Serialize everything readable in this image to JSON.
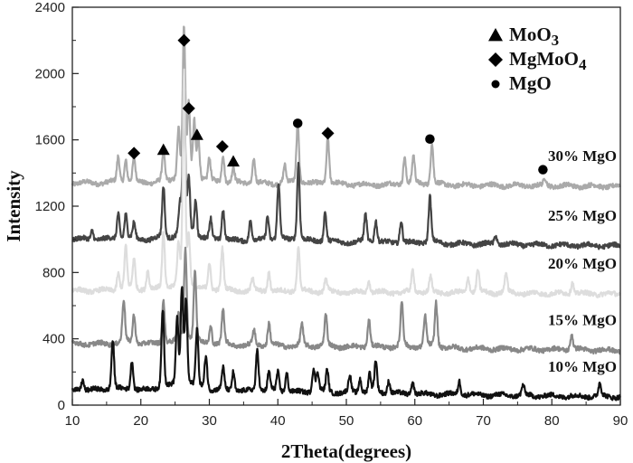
{
  "chart_data": {
    "type": "line",
    "title": "",
    "xlabel": "2Theta(degrees)",
    "ylabel": "Intensity",
    "xlim": [
      10,
      90
    ],
    "ylim": [
      0,
      2400
    ],
    "xticks": [
      "10",
      "20",
      "30",
      "40",
      "50",
      "60",
      "70",
      "80",
      "90"
    ],
    "yticks": [
      "0",
      "400",
      "800",
      "1200",
      "1600",
      "2000",
      "2400"
    ],
    "grid": false,
    "legend": {
      "placement": "top-right",
      "entries": [
        {
          "marker": "triangle",
          "label": "MoO",
          "sub": "3"
        },
        {
          "marker": "diamond",
          "label": "MgMoO",
          "sub": "4"
        },
        {
          "marker": "circle",
          "label": "MgO",
          "sub": ""
        }
      ]
    },
    "series": [
      {
        "name": "30% MgO",
        "color": "#aaaaaa",
        "baseline": [
          1340,
          1320
        ],
        "peaks": [
          [
            16.7,
            1480
          ],
          [
            17.8,
            1460
          ],
          [
            19.0,
            1470
          ],
          [
            23.3,
            1500
          ],
          [
            25.5,
            1600
          ],
          [
            26.3,
            2150
          ],
          [
            27.0,
            1720
          ],
          [
            27.8,
            1640
          ],
          [
            28.4,
            1560
          ],
          [
            30.0,
            1460
          ],
          [
            32.0,
            1490
          ],
          [
            33.5,
            1420
          ],
          [
            36.5,
            1470
          ],
          [
            41.0,
            1430
          ],
          [
            42.9,
            1660
          ],
          [
            47.3,
            1590
          ],
          [
            58.5,
            1480
          ],
          [
            59.8,
            1480
          ],
          [
            62.5,
            1560
          ],
          [
            79.0,
            1360
          ]
        ]
      },
      {
        "name": "25% MgO",
        "color": "#444444",
        "baseline": [
          1000,
          960
        ],
        "peaks": [
          [
            12.9,
            1050
          ],
          [
            16.7,
            1140
          ],
          [
            17.8,
            1130
          ],
          [
            19.0,
            1080
          ],
          [
            23.3,
            1280
          ],
          [
            25.7,
            1150
          ],
          [
            26.3,
            1800
          ],
          [
            27.0,
            1300
          ],
          [
            28.0,
            1200
          ],
          [
            30.2,
            1100
          ],
          [
            32.0,
            1160
          ],
          [
            36.0,
            1100
          ],
          [
            38.5,
            1120
          ],
          [
            40.1,
            1300
          ],
          [
            43.0,
            1410
          ],
          [
            46.9,
            1150
          ],
          [
            52.8,
            1130
          ],
          [
            54.3,
            1100
          ],
          [
            58.0,
            1100
          ],
          [
            62.2,
            1230
          ],
          [
            71.8,
            1020
          ]
        ]
      },
      {
        "name": "20% MgO",
        "color": "#dddddd",
        "baseline": [
          690,
          670
        ],
        "peaks": [
          [
            16.7,
            780
          ],
          [
            17.8,
            920
          ],
          [
            19.0,
            860
          ],
          [
            21.0,
            790
          ],
          [
            23.3,
            1000
          ],
          [
            25.5,
            900
          ],
          [
            26.3,
            1850
          ],
          [
            27.0,
            950
          ],
          [
            30.0,
            830
          ],
          [
            31.9,
            920
          ],
          [
            36.3,
            760
          ],
          [
            38.7,
            790
          ],
          [
            43.0,
            920
          ],
          [
            47.0,
            760
          ],
          [
            53.3,
            740
          ],
          [
            59.7,
            800
          ],
          [
            62.3,
            760
          ],
          [
            67.8,
            760
          ],
          [
            69.2,
            800
          ],
          [
            73.3,
            780
          ],
          [
            83.0,
            740
          ]
        ]
      },
      {
        "name": "15% MgO",
        "color": "#888888",
        "baseline": [
          370,
          330
        ],
        "peaks": [
          [
            17.5,
            600
          ],
          [
            19.0,
            530
          ],
          [
            23.3,
            600
          ],
          [
            25.5,
            520
          ],
          [
            26.5,
            880
          ],
          [
            27.9,
            760
          ],
          [
            30.2,
            460
          ],
          [
            32.0,
            550
          ],
          [
            36.5,
            440
          ],
          [
            38.7,
            480
          ],
          [
            43.5,
            470
          ],
          [
            47.0,
            520
          ],
          [
            53.3,
            500
          ],
          [
            58.1,
            590
          ],
          [
            61.5,
            510
          ],
          [
            63.1,
            590
          ],
          [
            82.9,
            420
          ]
        ]
      },
      {
        "name": "10% MgO",
        "color": "#111111",
        "baseline": [
          90,
          50
        ],
        "peaks": [
          [
            11.5,
            150
          ],
          [
            15.9,
            360
          ],
          [
            18.7,
            250
          ],
          [
            23.2,
            520
          ],
          [
            25.3,
            440
          ],
          [
            26.0,
            600
          ],
          [
            26.6,
            540
          ],
          [
            28.2,
            400
          ],
          [
            29.5,
            270
          ],
          [
            32.0,
            200
          ],
          [
            33.5,
            190
          ],
          [
            37.0,
            310
          ],
          [
            38.7,
            180
          ],
          [
            40.0,
            180
          ],
          [
            41.3,
            180
          ],
          [
            45.2,
            200
          ],
          [
            45.8,
            180
          ],
          [
            47.2,
            190
          ],
          [
            50.5,
            160
          ],
          [
            52.0,
            150
          ],
          [
            53.4,
            170
          ],
          [
            54.3,
            240
          ],
          [
            56.2,
            140
          ],
          [
            59.7,
            130
          ],
          [
            66.5,
            140
          ],
          [
            75.8,
            110
          ],
          [
            87.0,
            120
          ]
        ]
      }
    ],
    "phase_markers": [
      {
        "phase": "MgMoO4",
        "marker": "diamond",
        "points": [
          [
            19.0,
            1520
          ],
          [
            26.3,
            2200
          ],
          [
            27.0,
            1790
          ],
          [
            31.9,
            1560
          ],
          [
            47.3,
            1640
          ]
        ]
      },
      {
        "phase": "MoO3",
        "marker": "triangle",
        "points": [
          [
            23.3,
            1540
          ],
          [
            28.2,
            1630
          ],
          [
            33.5,
            1470
          ]
        ]
      },
      {
        "phase": "MgO",
        "marker": "circle",
        "points": [
          [
            42.9,
            1700
          ],
          [
            62.2,
            1605
          ],
          [
            78.7,
            1420
          ]
        ]
      }
    ]
  }
}
